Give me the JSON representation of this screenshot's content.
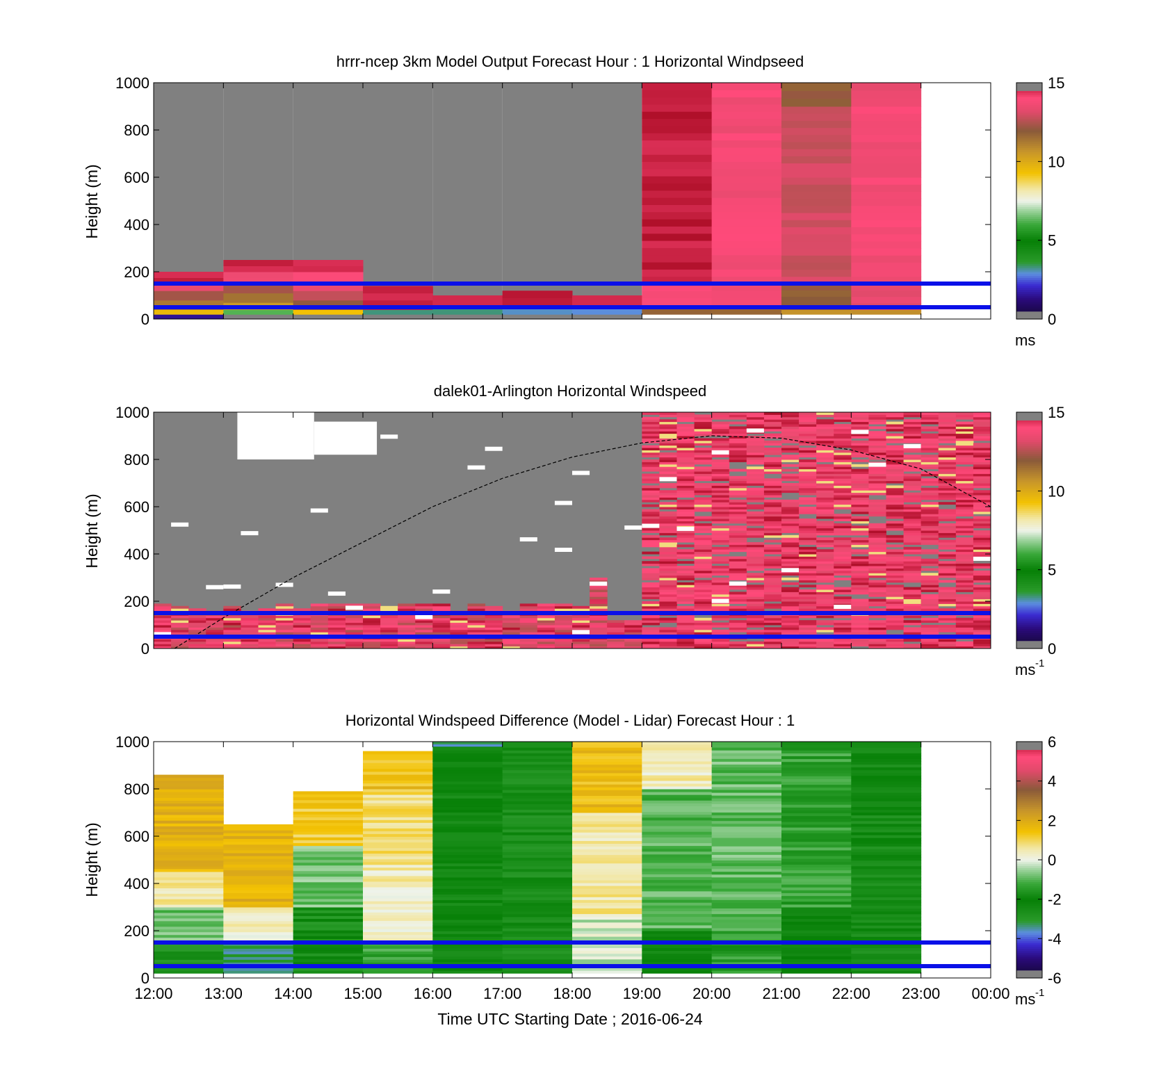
{
  "figure": {
    "xlabel": "Time UTC  Starting Date ; 2016-06-24",
    "x_tick_labels": [
      "12:00",
      "13:00",
      "14:00",
      "15:00",
      "16:00",
      "17:00",
      "18:00",
      "19:00",
      "20:00",
      "21:00",
      "22:00",
      "23:00",
      "00:00"
    ],
    "y_tick_labels": [
      "0",
      "200",
      "400",
      "600",
      "800",
      "1000"
    ],
    "ylabel": "Height (m)",
    "reference_lines": {
      "color": "#0a10e8",
      "heights_m": [
        150,
        50
      ]
    }
  },
  "chart_data": [
    {
      "type": "heatmap",
      "title": "hrrr-ncep 3km Model Output   Forecast Hour : 1 Horizontal Windpseed",
      "ylabel": "Height (m)",
      "xlim_hours": [
        12,
        24
      ],
      "ylim": [
        0,
        1000
      ],
      "colorbar": {
        "ticks": [
          "0",
          "5",
          "10",
          "15"
        ],
        "range": [
          0,
          15
        ],
        "unit": "ms"
      },
      "missing_color": "#808080",
      "columns": [
        {
          "t0": 12,
          "t1": 13,
          "segments": [
            [
              0,
              20,
              1.5
            ],
            [
              20,
              40,
              9.5
            ],
            [
              40,
              80,
              11.5
            ],
            [
              80,
              120,
              12.5
            ],
            [
              120,
              150,
              13.5
            ],
            [
              150,
              200,
              14.8
            ]
          ]
        },
        {
          "t0": 13,
          "t1": 14,
          "segments": [
            [
              20,
              40,
              6
            ],
            [
              40,
              70,
              10.5
            ],
            [
              70,
              110,
              11.5
            ],
            [
              110,
              150,
              12.5
            ],
            [
              150,
              200,
              13.5
            ],
            [
              200,
              250,
              14.8
            ]
          ]
        },
        {
          "t0": 14,
          "t1": 15,
          "segments": [
            [
              20,
              40,
              9.5
            ],
            [
              40,
              80,
              12
            ],
            [
              80,
              120,
              13
            ],
            [
              120,
              160,
              13.5
            ],
            [
              160,
              200,
              14
            ],
            [
              200,
              250,
              14.8
            ]
          ]
        },
        {
          "t0": 15,
          "t1": 16,
          "segments": [
            [
              20,
              40,
              3
            ],
            [
              40,
              80,
              14.5
            ],
            [
              80,
              140,
              14.8
            ]
          ]
        },
        {
          "t0": 16,
          "t1": 17,
          "segments": [
            [
              20,
              60,
              3
            ],
            [
              60,
              100,
              14.8
            ]
          ]
        },
        {
          "t0": 17,
          "t1": 18,
          "segments": [
            [
              20,
              60,
              3
            ],
            [
              60,
              120,
              14.8
            ]
          ]
        },
        {
          "t0": 18,
          "t1": 19,
          "segments": [
            [
              20,
              60,
              3
            ],
            [
              60,
              100,
              14.8
            ]
          ]
        },
        {
          "t0": 19,
          "t1": 20,
          "segments": [
            [
              20,
              60,
              11.5
            ],
            [
              60,
              150,
              14
            ],
            [
              150,
              1000,
              14.8
            ]
          ]
        },
        {
          "t0": 20,
          "t1": 21,
          "segments": [
            [
              20,
              60,
              11.5
            ],
            [
              60,
              150,
              13.8
            ],
            [
              150,
              1000,
              13.8
            ]
          ]
        },
        {
          "t0": 21,
          "t1": 22,
          "segments": [
            [
              20,
              40,
              10.5
            ],
            [
              40,
              150,
              12
            ],
            [
              150,
              900,
              13
            ],
            [
              900,
              1000,
              12
            ]
          ]
        },
        {
          "t0": 22,
          "t1": 23,
          "segments": [
            [
              20,
              40,
              11
            ],
            [
              40,
              150,
              13.5
            ],
            [
              150,
              900,
              13.8
            ],
            [
              900,
              1000,
              13.6
            ]
          ]
        }
      ]
    },
    {
      "type": "heatmap",
      "title": "dalek01-Arlington  Horizontal Windspeed",
      "ylabel": "Height (m)",
      "xlim_hours": [
        12,
        24
      ],
      "ylim": [
        0,
        1000
      ],
      "colorbar": {
        "ticks": [
          "0",
          "5",
          "10",
          "15"
        ],
        "range": [
          0,
          15
        ],
        "unit": "ms",
        "unit_superscript": "-1"
      },
      "missing_color": "#808080",
      "overlay_curve": {
        "style": "dashed",
        "color": "#000000",
        "t": [
          12.3,
          13,
          14,
          15,
          16,
          17,
          18,
          19,
          20,
          21,
          22,
          23,
          24
        ],
        "height_m": [
          0,
          130,
          300,
          450,
          600,
          720,
          810,
          870,
          900,
          890,
          840,
          760,
          600
        ]
      },
      "description_regions": [
        {
          "t0": 12,
          "t1": 18.2,
          "low_band": [
            0,
            150
          ],
          "above": "mostly missing"
        },
        {
          "t0": 18.2,
          "t1": 18.5,
          "low_band": [
            0,
            300
          ],
          "above": "sparse"
        },
        {
          "t0": 19,
          "t1": 24,
          "low_band": [
            0,
            1000
          ],
          "above": "high values 13-15"
        }
      ]
    },
    {
      "type": "heatmap",
      "title": "Horizontal Windspeed Difference (Model - Lidar) Forecast Hour : 1",
      "ylabel": "Height (m)",
      "xlabel": "Time UTC  Starting Date ; 2016-06-24",
      "xlim_hours": [
        12,
        24
      ],
      "ylim": [
        0,
        1000
      ],
      "colorbar": {
        "ticks": [
          "-6",
          "-4",
          "-2",
          "0",
          "2",
          "4",
          "6"
        ],
        "range": [
          -6,
          6
        ],
        "unit": "ms",
        "unit_superscript": "-1"
      },
      "columns": [
        {
          "t0": 12,
          "t1": 13,
          "segments": [
            [
              20,
              160,
              -2.8
            ],
            [
              160,
              300,
              -0.8
            ],
            [
              300,
              450,
              0.5
            ],
            [
              450,
              860,
              1.8
            ]
          ]
        },
        {
          "t0": 13,
          "t1": 14,
          "segments": [
            [
              20,
              160,
              -3.3
            ],
            [
              160,
              300,
              0.3
            ],
            [
              300,
              650,
              1.8
            ]
          ]
        },
        {
          "t0": 14,
          "t1": 15,
          "segments": [
            [
              20,
              300,
              -1.8
            ],
            [
              300,
              560,
              -0.8
            ],
            [
              560,
              790,
              1.2
            ]
          ]
        },
        {
          "t0": 15,
          "t1": 16,
          "segments": [
            [
              20,
              160,
              -1.2
            ],
            [
              160,
              480,
              0.4
            ],
            [
              480,
              800,
              0.8
            ],
            [
              800,
              960,
              1.5
            ]
          ]
        },
        {
          "t0": 16,
          "t1": 17,
          "segments": [
            [
              20,
              1000,
              -2.3
            ],
            [
              980,
              1000,
              -3.5
            ]
          ]
        },
        {
          "t0": 17,
          "t1": 18,
          "segments": [
            [
              20,
              1000,
              -2.6
            ]
          ]
        },
        {
          "t0": 18,
          "t1": 19,
          "segments": [
            [
              20,
              260,
              -0.2
            ],
            [
              260,
              700,
              0.6
            ],
            [
              700,
              1000,
              1.6
            ]
          ]
        },
        {
          "t0": 19,
          "t1": 20,
          "segments": [
            [
              20,
              200,
              -2.2
            ],
            [
              200,
              800,
              -1
            ],
            [
              800,
              1000,
              0.4
            ]
          ]
        },
        {
          "t0": 20,
          "t1": 21,
          "segments": [
            [
              20,
              200,
              -1.5
            ],
            [
              200,
              1000,
              -0.9
            ]
          ]
        },
        {
          "t0": 21,
          "t1": 22,
          "segments": [
            [
              20,
              300,
              -2.2
            ],
            [
              300,
              1000,
              -1.4
            ]
          ]
        },
        {
          "t0": 22,
          "t1": 23,
          "segments": [
            [
              20,
              1000,
              -2.5
            ]
          ]
        }
      ]
    }
  ]
}
